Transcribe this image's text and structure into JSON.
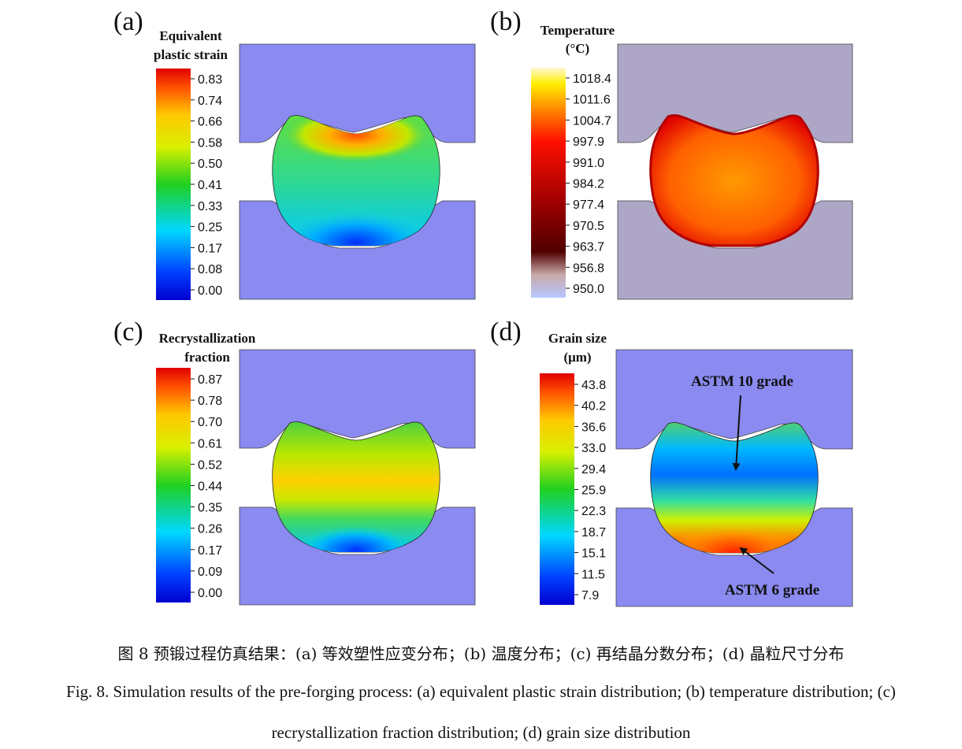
{
  "panels": [
    {
      "letter": "(a)",
      "title": [
        "Equivalent",
        "plastic strain"
      ],
      "ticks": [
        "0.83",
        "0.74",
        "0.66",
        "0.58",
        "0.50",
        "0.41",
        "0.33",
        "0.25",
        "0.17",
        "0.08",
        "0.00"
      ]
    },
    {
      "letter": "(b)",
      "title": [
        "Temperature",
        "(°C)"
      ],
      "ticks": [
        "1018.4",
        "1011.6",
        "1004.7",
        "997.9",
        "991.0",
        "984.2",
        "977.4",
        "970.5",
        "963.7",
        "956.8",
        "950.0"
      ]
    },
    {
      "letter": "(c)",
      "title": [
        "Recrystallization",
        "fraction"
      ],
      "ticks": [
        "0.87",
        "0.78",
        "0.70",
        "0.61",
        "0.52",
        "0.44",
        "0.35",
        "0.26",
        "0.17",
        "0.09",
        "0.00"
      ]
    },
    {
      "letter": "(d)",
      "title": [
        "Grain size",
        "(μm)"
      ],
      "ticks": [
        "43.8",
        "40.2",
        "36.6",
        "33.0",
        "29.4",
        "25.9",
        "22.3",
        "18.7",
        "15.1",
        "11.5",
        "7.9"
      ]
    }
  ],
  "annotations": {
    "top": "ASTM 10 grade",
    "bottom": "ASTM 6 grade"
  },
  "caption": {
    "zh": "图 8  预锻过程仿真结果：(a)  等效塑性应变分布；(b)  温度分布；(c)  再结晶分数分布；(d)  晶粒尺寸分布",
    "en_line1": "Fig. 8. Simulation results of the pre-forging process: (a) equivalent plastic strain distribution; (b) temperature distribution; (c)",
    "en_line2": "recrystallization fraction distribution; (d) grain size distribution"
  },
  "colors": {
    "die": "#8a8af0",
    "die_b": "#aea6c6"
  }
}
